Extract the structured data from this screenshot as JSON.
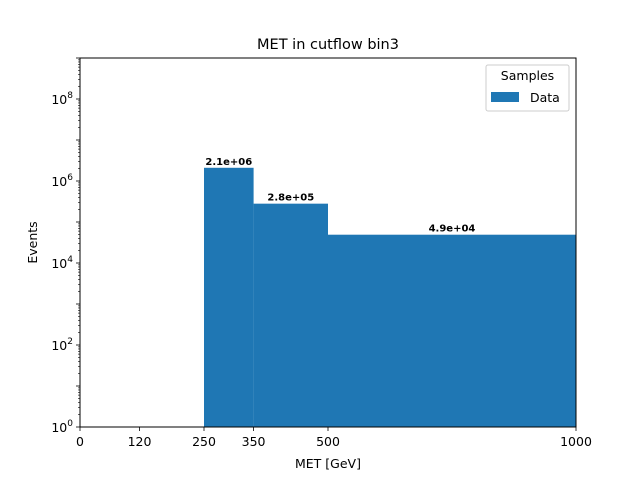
{
  "chart_data": {
    "type": "bar",
    "title": "MET in cutflow bin3",
    "xlabel": "MET [GeV]",
    "ylabel": "Events",
    "xlim": [
      0,
      1000
    ],
    "ylim": [
      1,
      1000000000.0
    ],
    "yscale": "log",
    "grid": false,
    "x_ticks": [
      0,
      120,
      250,
      350,
      500,
      1000
    ],
    "x_tick_labels": [
      "0",
      "120",
      "250",
      "350",
      "500",
      "1000"
    ],
    "y_ticks": [
      {
        "value": 1,
        "base": "10",
        "exp": "0"
      },
      {
        "value": 100,
        "base": "10",
        "exp": "2"
      },
      {
        "value": 10000,
        "base": "10",
        "exp": "4"
      },
      {
        "value": 1000000,
        "base": "10",
        "exp": "6"
      },
      {
        "value": 100000000,
        "base": "10",
        "exp": "8"
      }
    ],
    "bin_edges": [
      0,
      120,
      250,
      350,
      500,
      1000
    ],
    "series": [
      {
        "name": "Data",
        "color": "#1f77b4",
        "values": [
          0,
          0,
          2100000,
          280000,
          49000
        ],
        "value_labels": [
          "",
          "",
          "2.1e+06",
          "2.8e+05",
          "4.9e+04"
        ]
      }
    ],
    "legend": {
      "title": "Samples",
      "placement": "top-right"
    }
  }
}
